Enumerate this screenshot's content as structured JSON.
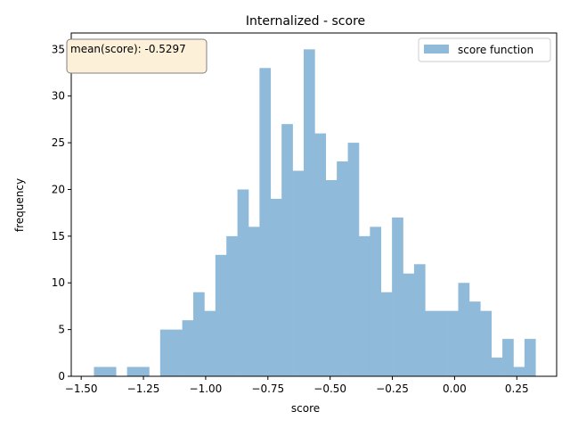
{
  "chart_data": {
    "type": "bar",
    "title": "Internalized - score",
    "xlabel": "score",
    "ylabel": "frequency",
    "xlim": [
      -1.54,
      0.41
    ],
    "ylim": [
      0,
      36.75
    ],
    "x_ticks": [
      {
        "value": -1.5,
        "label": "−1.50"
      },
      {
        "value": -1.25,
        "label": "−1.25"
      },
      {
        "value": -1.0,
        "label": "−1.00"
      },
      {
        "value": -0.75,
        "label": "−0.75"
      },
      {
        "value": -0.5,
        "label": "−0.50"
      },
      {
        "value": -0.25,
        "label": "−0.25"
      },
      {
        "value": 0.0,
        "label": "0.00"
      },
      {
        "value": 0.25,
        "label": "0.25"
      }
    ],
    "y_ticks": [
      {
        "value": 0,
        "label": "0"
      },
      {
        "value": 5,
        "label": "5"
      },
      {
        "value": 10,
        "label": "10"
      },
      {
        "value": 15,
        "label": "15"
      },
      {
        "value": 20,
        "label": "20"
      },
      {
        "value": 25,
        "label": "25"
      },
      {
        "value": 30,
        "label": "30"
      },
      {
        "value": 35,
        "label": "35"
      }
    ],
    "grid": false,
    "legend": {
      "position": "top-right",
      "entries": [
        "score function"
      ]
    },
    "annotation": {
      "text": "mean(score): -0.5297",
      "position": "top-left"
    },
    "series": [
      {
        "name": "score function",
        "color": "#8fbad9",
        "bin_start": -1.4489,
        "bin_width": 0.04435,
        "values": [
          1,
          1,
          0,
          1,
          1,
          0,
          5,
          5,
          6,
          9,
          7,
          13,
          15,
          20,
          16,
          33,
          19,
          27,
          22,
          35,
          26,
          21,
          23,
          25,
          15,
          16,
          9,
          17,
          11,
          12,
          7,
          7,
          7,
          10,
          8,
          7,
          2,
          4,
          1,
          4
        ]
      }
    ]
  }
}
